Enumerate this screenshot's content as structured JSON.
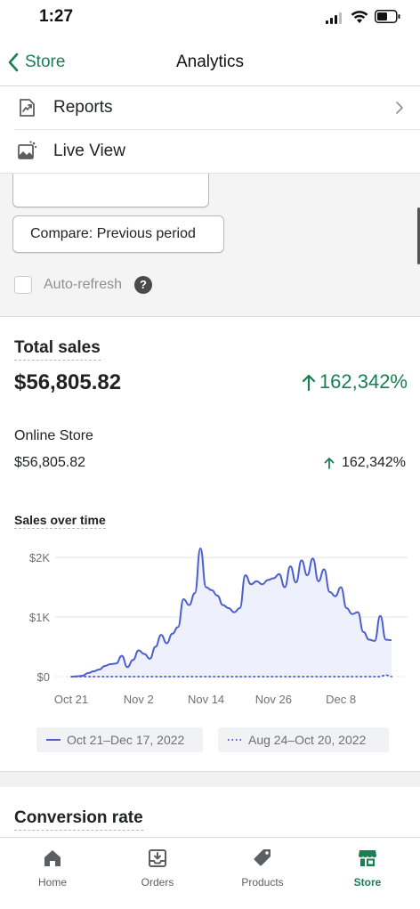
{
  "status_bar": {
    "time": "1:27"
  },
  "nav": {
    "back_label": "Store",
    "title": "Analytics"
  },
  "menu": [
    {
      "label": "Reports",
      "icon": "reports-icon"
    },
    {
      "label": "Live View",
      "icon": "live-view-icon"
    }
  ],
  "filters": {
    "compare_label": "Compare: Previous period",
    "auto_refresh_label": "Auto-refresh",
    "help_glyph": "?"
  },
  "total_sales": {
    "title": "Total sales",
    "value": "$56,805.82",
    "change": "162,342%",
    "channel": {
      "name": "Online Store",
      "value": "$56,805.82",
      "change": "162,342%"
    }
  },
  "chart_data": {
    "type": "line",
    "title": "Sales over time",
    "y_ticks": [
      "$2K",
      "$1K",
      "$0"
    ],
    "x_ticks": [
      "Oct 21",
      "Nov 2",
      "Nov 14",
      "Nov 26",
      "Dec 8"
    ],
    "ylim": [
      0,
      2300
    ],
    "xlim": [
      "2022-10-21",
      "2022-12-17"
    ],
    "grid": true,
    "series": [
      {
        "name": "Oct 21–Dec 17, 2022",
        "color": "#4b5fd1",
        "style": "solid",
        "x": [
          "2022-10-21",
          "2022-10-22",
          "2022-10-23",
          "2022-10-24",
          "2022-10-25",
          "2022-10-26",
          "2022-10-27",
          "2022-10-28",
          "2022-10-29",
          "2022-10-30",
          "2022-10-31",
          "2022-11-01",
          "2022-11-02",
          "2022-11-03",
          "2022-11-04",
          "2022-11-05",
          "2022-11-06",
          "2022-11-07",
          "2022-11-08",
          "2022-11-09",
          "2022-11-10",
          "2022-11-11",
          "2022-11-12",
          "2022-11-13",
          "2022-11-14",
          "2022-11-15",
          "2022-11-16",
          "2022-11-17",
          "2022-11-18",
          "2022-11-19",
          "2022-11-20",
          "2022-11-21",
          "2022-11-22",
          "2022-11-23",
          "2022-11-24",
          "2022-11-25",
          "2022-11-26",
          "2022-11-27",
          "2022-11-28",
          "2022-11-29",
          "2022-11-30",
          "2022-12-01",
          "2022-12-02",
          "2022-12-03",
          "2022-12-04",
          "2022-12-05",
          "2022-12-06",
          "2022-12-07",
          "2022-12-08",
          "2022-12-09",
          "2022-12-10",
          "2022-12-11",
          "2022-12-12",
          "2022-12-13",
          "2022-12-14",
          "2022-12-15",
          "2022-12-16",
          "2022-12-17"
        ],
        "values": [
          0,
          5,
          15,
          60,
          90,
          120,
          180,
          210,
          220,
          350,
          160,
          280,
          440,
          380,
          300,
          500,
          700,
          560,
          720,
          830,
          1300,
          1200,
          1400,
          2150,
          1500,
          1450,
          1360,
          1200,
          1150,
          1080,
          1150,
          1700,
          1550,
          1600,
          1550,
          1620,
          1650,
          1720,
          1500,
          1850,
          1580,
          1950,
          1700,
          1980,
          1600,
          1800,
          1420,
          1350,
          1500,
          1150,
          1050,
          1080,
          750,
          620,
          600,
          1020,
          620,
          610
        ]
      },
      {
        "name": "Aug 24–Oct 20, 2022",
        "color": "#4b5fd1",
        "style": "dotted",
        "x": [
          "2022-10-21",
          "2022-11-02",
          "2022-11-14",
          "2022-11-26",
          "2022-12-08",
          "2022-12-15",
          "2022-12-16",
          "2022-12-17"
        ],
        "values": [
          0,
          0,
          0,
          0,
          0,
          0,
          30,
          0
        ]
      }
    ]
  },
  "conversion": {
    "title": "Conversion rate"
  },
  "tabs": [
    {
      "label": "Home",
      "icon": "home-icon"
    },
    {
      "label": "Orders",
      "icon": "orders-icon"
    },
    {
      "label": "Products",
      "icon": "products-icon"
    },
    {
      "label": "Store",
      "icon": "store-icon"
    }
  ],
  "colors": {
    "accent": "#1a7f52",
    "chart_line": "#4b5fd1",
    "positive": "#1a7f52"
  }
}
